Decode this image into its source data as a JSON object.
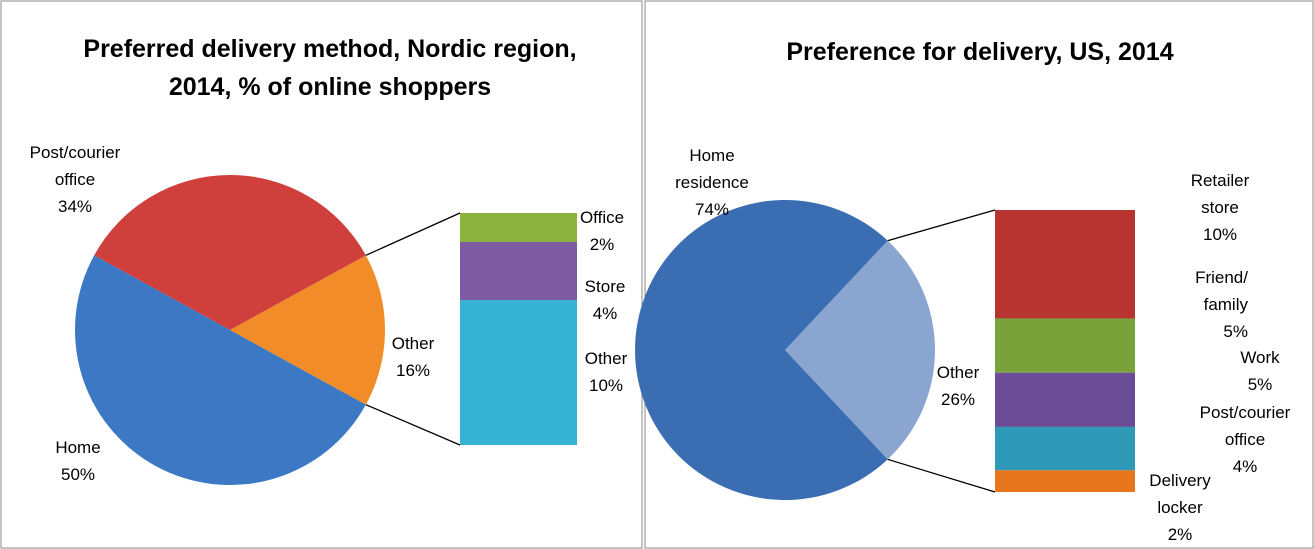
{
  "chart_data": [
    {
      "type": "pie",
      "title": "Preferred delivery method, Nordic region, 2014, % of online shoppers",
      "categories": [
        "Home",
        "Post/courier office",
        "Other"
      ],
      "values": [
        50,
        34,
        16
      ],
      "value_labels": [
        "50%",
        "34%",
        "16%"
      ],
      "colors": [
        "#3c78c3",
        "#cf3f3b",
        "#f28c28"
      ],
      "breakout": {
        "categories": [
          "Office",
          "Store",
          "Other"
        ],
        "values": [
          2,
          4,
          10
        ],
        "value_labels": [
          "2%",
          "4%",
          "10%"
        ],
        "colors": [
          "#8db33f",
          "#7e5aa2",
          "#36b2d4"
        ]
      }
    },
    {
      "type": "pie",
      "title": "Preference for delivery, US, 2014",
      "categories": [
        "Home residence",
        "Other"
      ],
      "values": [
        74,
        26
      ],
      "value_labels": [
        "74%",
        "26%"
      ],
      "colors": [
        "#3b6db3",
        "#8aa6d0"
      ],
      "breakout": {
        "categories": [
          "Retailer store",
          "Friend/ family",
          "Work",
          "Post/courier office",
          "Delivery locker"
        ],
        "values": [
          10,
          5,
          5,
          4,
          2
        ],
        "value_labels": [
          "10%",
          "5%",
          "5%",
          "4%",
          "2%"
        ],
        "colors": [
          "#b83431",
          "#79a33a",
          "#6a4c97",
          "#2f9ab8",
          "#e8761c"
        ]
      }
    }
  ]
}
